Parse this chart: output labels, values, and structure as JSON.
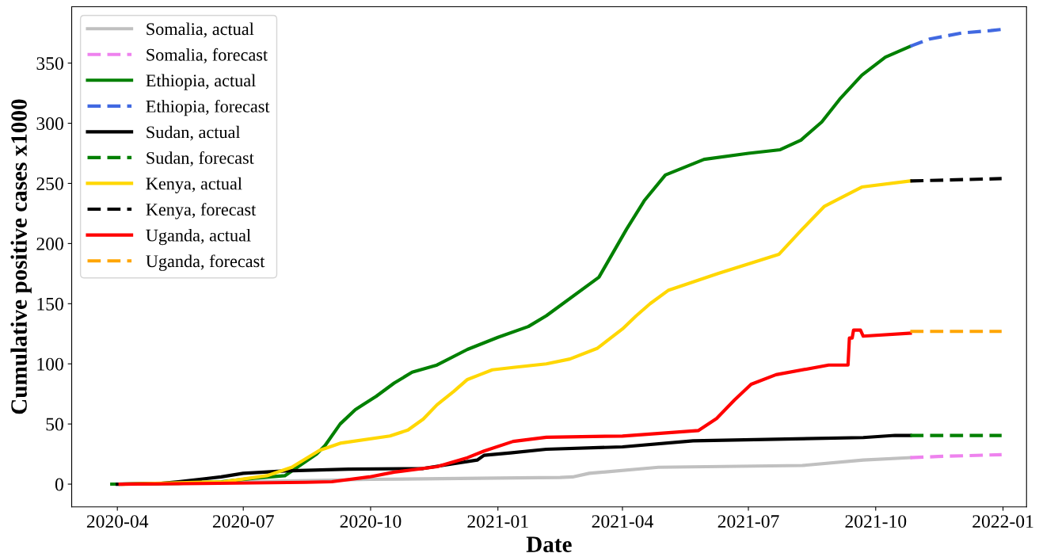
{
  "chart_data": {
    "type": "line",
    "xlabel": "Date",
    "ylabel": "Cumulative positive cases x1000",
    "xlim": [
      "2020-02-28",
      "2022-01-18"
    ],
    "ylim": [
      -18.9,
      396.9
    ],
    "xticks": [
      "2020-04",
      "2020-07",
      "2020-10",
      "2021-01",
      "2021-04",
      "2021-07",
      "2021-10",
      "2022-01"
    ],
    "yticks": [
      0,
      50,
      100,
      150,
      200,
      250,
      300,
      350
    ],
    "grid": false,
    "legend": "top left",
    "marker": "none",
    "series": [
      {
        "name": "Somalia, actual",
        "color": "#c0c0c0",
        "line_style": "solid",
        "x": [
          "2020-04-01",
          "2020-07-01",
          "2020-10-01",
          "2021-01-01",
          "2021-02-15",
          "2021-02-24",
          "2021-03-08",
          "2021-04-27",
          "2021-08-09",
          "2021-09-22",
          "2021-10-26"
        ],
        "values": [
          0,
          2,
          4,
          5,
          5.5,
          6,
          9,
          14,
          15.5,
          20,
          22
        ]
      },
      {
        "name": "Somalia, forecast",
        "color": "#ee82ee",
        "line_style": "dashed",
        "x": [
          "2021-10-26",
          "2021-11-15",
          "2021-12-31"
        ],
        "values": [
          22,
          23,
          24.5
        ]
      },
      {
        "name": "Ethiopia, actual",
        "color": "#008000",
        "line_style": "solid",
        "x": [
          "2020-03-28",
          "2020-04-01",
          "2020-05-15",
          "2020-06-15",
          "2020-07-10",
          "2020-07-31",
          "2020-08-14",
          "2020-08-23",
          "2020-08-29",
          "2020-09-09",
          "2020-09-20",
          "2020-10-05",
          "2020-10-18",
          "2020-10-31",
          "2020-11-18",
          "2020-12-10",
          "2021-01-01",
          "2021-01-23",
          "2021-02-05",
          "2021-03-15",
          "2021-04-04",
          "2021-04-17",
          "2021-05-02",
          "2021-05-30",
          "2021-07-01",
          "2021-07-24",
          "2021-08-08",
          "2021-08-23",
          "2021-09-05",
          "2021-09-21",
          "2021-10-08",
          "2021-10-26"
        ],
        "values": [
          0,
          0,
          0.5,
          2,
          5,
          7,
          18,
          25,
          32,
          50,
          62,
          73,
          84,
          93,
          99,
          112,
          122,
          131,
          140,
          172,
          212,
          236,
          257,
          270,
          275,
          278,
          286,
          301,
          320,
          340,
          355,
          364
        ]
      },
      {
        "name": "Ethiopia, forecast",
        "color": "#4169e1",
        "line_style": "dashed",
        "x": [
          "2021-10-26",
          "2021-11-09",
          "2021-12-02",
          "2021-12-23",
          "2021-12-31"
        ],
        "values": [
          364,
          370,
          375,
          377,
          378
        ]
      },
      {
        "name": "Sudan, actual",
        "color": "#000000",
        "line_style": "solid",
        "x": [
          "2020-04-01",
          "2020-05-01",
          "2020-05-15",
          "2020-06-15",
          "2020-07-01",
          "2020-07-31",
          "2020-09-15",
          "2020-11-08",
          "2020-11-30",
          "2020-12-17",
          "2020-12-22",
          "2021-01-10",
          "2021-02-05",
          "2021-04-01",
          "2021-05-22",
          "2021-09-22",
          "2021-10-15",
          "2021-10-26"
        ],
        "values": [
          0,
          0.5,
          2,
          6,
          9,
          11,
          12.5,
          13,
          17,
          20,
          24,
          26,
          29,
          31,
          36,
          38.7,
          40.5,
          40.5
        ]
      },
      {
        "name": "Sudan, forecast",
        "color": "#008000",
        "line_style": "dashed",
        "x": [
          "2021-10-26",
          "2021-12-31"
        ],
        "values": [
          40.5,
          40.5
        ]
      },
      {
        "name": "Kenya, actual",
        "color": "#ffd700",
        "line_style": "solid",
        "x": [
          "2020-04-05",
          "2020-06-17",
          "2020-07-18",
          "2020-08-05",
          "2020-08-25",
          "2020-09-09",
          "2020-10-15",
          "2020-10-28",
          "2020-11-08",
          "2020-11-18",
          "2020-11-30",
          "2020-12-10",
          "2020-12-19",
          "2020-12-28",
          "2021-01-12",
          "2021-02-05",
          "2021-02-22",
          "2021-03-14",
          "2021-04-01",
          "2021-04-11",
          "2021-04-21",
          "2021-05-04",
          "2021-06-09",
          "2021-07-23",
          "2021-08-09",
          "2021-08-25",
          "2021-09-21",
          "2021-10-26"
        ],
        "values": [
          0,
          2,
          7,
          14,
          28,
          34,
          40,
          45,
          54,
          66,
          77,
          87,
          91,
          95,
          97,
          100,
          104,
          113,
          129,
          140,
          150,
          161,
          175,
          191,
          212,
          231,
          247,
          252
        ]
      },
      {
        "name": "Kenya, forecast",
        "color": "#000000",
        "line_style": "dashed",
        "x": [
          "2021-10-26",
          "2021-12-31"
        ],
        "values": [
          252,
          254
        ]
      },
      {
        "name": "Uganda, actual",
        "color": "#ff0000",
        "line_style": "solid",
        "x": [
          "2020-04-03",
          "2020-06-01",
          "2020-08-15",
          "2020-09-03",
          "2020-09-30",
          "2020-10-18",
          "2020-11-18",
          "2020-12-10",
          "2020-12-22",
          "2021-01-12",
          "2021-02-05",
          "2021-04-01",
          "2021-05-26",
          "2021-06-08",
          "2021-06-21",
          "2021-07-03",
          "2021-07-21",
          "2021-08-28",
          "2021-09-11",
          "2021-09-12",
          "2021-09-14",
          "2021-09-15",
          "2021-09-20",
          "2021-09-22",
          "2021-10-26"
        ],
        "values": [
          0,
          0.5,
          1.5,
          2,
          6,
          10,
          14.5,
          22,
          27.5,
          35.5,
          39,
          40,
          44.6,
          54.5,
          70,
          83,
          91,
          99,
          99,
          121.5,
          121.5,
          128,
          128,
          123,
          125.5
        ]
      },
      {
        "name": "Uganda, forecast",
        "color": "#ffa500",
        "line_style": "dashed",
        "x": [
          "2021-10-26",
          "2021-12-31"
        ],
        "values": [
          127,
          127
        ]
      }
    ]
  }
}
